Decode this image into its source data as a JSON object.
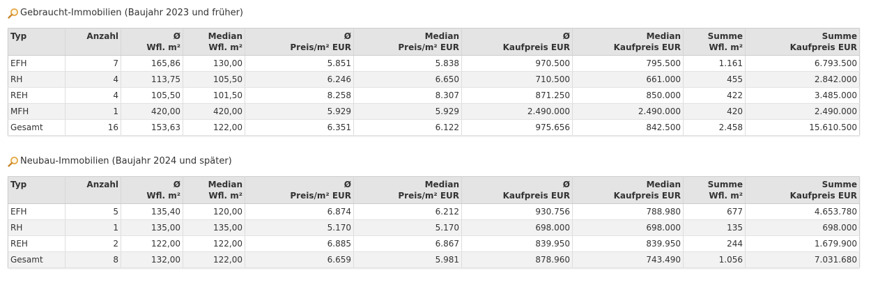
{
  "colors": {
    "header_bg": "#e4e4e4",
    "row_alt": "#f2f2f2",
    "border": "#cfcfcf",
    "icon": "#e2a33a"
  },
  "icons": {
    "section_heading": "magnifier-icon"
  },
  "tables": [
    {
      "title": "Gebraucht-Immobilien (Baujahr 2023 und früher)",
      "columns": [
        {
          "l1": "Typ",
          "l2": ""
        },
        {
          "l1": "Anzahl",
          "l2": ""
        },
        {
          "l1": "Ø",
          "l2": "Wfl. m²"
        },
        {
          "l1": "Median",
          "l2": "Wfl. m²"
        },
        {
          "l1": "Ø",
          "l2": "Preis/m² EUR"
        },
        {
          "l1": "Median",
          "l2": "Preis/m² EUR"
        },
        {
          "l1": "Ø",
          "l2": "Kaufpreis EUR"
        },
        {
          "l1": "Median",
          "l2": "Kaufpreis EUR"
        },
        {
          "l1": "Summe",
          "l2": "Wfl. m²"
        },
        {
          "l1": "Summe",
          "l2": "Kaufpreis EUR"
        }
      ],
      "rows": [
        [
          "EFH",
          "7",
          "165,86",
          "130,00",
          "5.851",
          "5.838",
          "970.500",
          "795.500",
          "1.161",
          "6.793.500"
        ],
        [
          "RH",
          "4",
          "113,75",
          "105,50",
          "6.246",
          "6.650",
          "710.500",
          "661.000",
          "455",
          "2.842.000"
        ],
        [
          "REH",
          "4",
          "105,50",
          "101,50",
          "8.258",
          "8.307",
          "871.250",
          "850.000",
          "422",
          "3.485.000"
        ],
        [
          "MFH",
          "1",
          "420,00",
          "420,00",
          "5.929",
          "5.929",
          "2.490.000",
          "2.490.000",
          "420",
          "2.490.000"
        ],
        [
          "Gesamt",
          "16",
          "153,63",
          "122,00",
          "6.351",
          "6.122",
          "975.656",
          "842.500",
          "2.458",
          "15.610.500"
        ]
      ]
    },
    {
      "title": "Neubau-Immobilien (Baujahr 2024 und später)",
      "columns": [
        {
          "l1": "Typ",
          "l2": ""
        },
        {
          "l1": "Anzahl",
          "l2": ""
        },
        {
          "l1": "Ø",
          "l2": "Wfl. m²"
        },
        {
          "l1": "Median",
          "l2": "Wfl. m²"
        },
        {
          "l1": "Ø",
          "l2": "Preis/m² EUR"
        },
        {
          "l1": "Median",
          "l2": "Preis/m² EUR"
        },
        {
          "l1": "Ø",
          "l2": "Kaufpreis EUR"
        },
        {
          "l1": "Median",
          "l2": "Kaufpreis EUR"
        },
        {
          "l1": "Summe",
          "l2": "Wfl. m²"
        },
        {
          "l1": "Summe",
          "l2": "Kaufpreis EUR"
        }
      ],
      "rows": [
        [
          "EFH",
          "5",
          "135,40",
          "120,00",
          "6.874",
          "6.212",
          "930.756",
          "788.980",
          "677",
          "4.653.780"
        ],
        [
          "RH",
          "1",
          "135,00",
          "135,00",
          "5.170",
          "5.170",
          "698.000",
          "698.000",
          "135",
          "698.000"
        ],
        [
          "REH",
          "2",
          "122,00",
          "122,00",
          "6.885",
          "6.867",
          "839.950",
          "839.950",
          "244",
          "1.679.900"
        ],
        [
          "Gesamt",
          "8",
          "132,00",
          "122,00",
          "6.659",
          "5.981",
          "878.960",
          "743.490",
          "1.056",
          "7.031.680"
        ]
      ]
    }
  ]
}
